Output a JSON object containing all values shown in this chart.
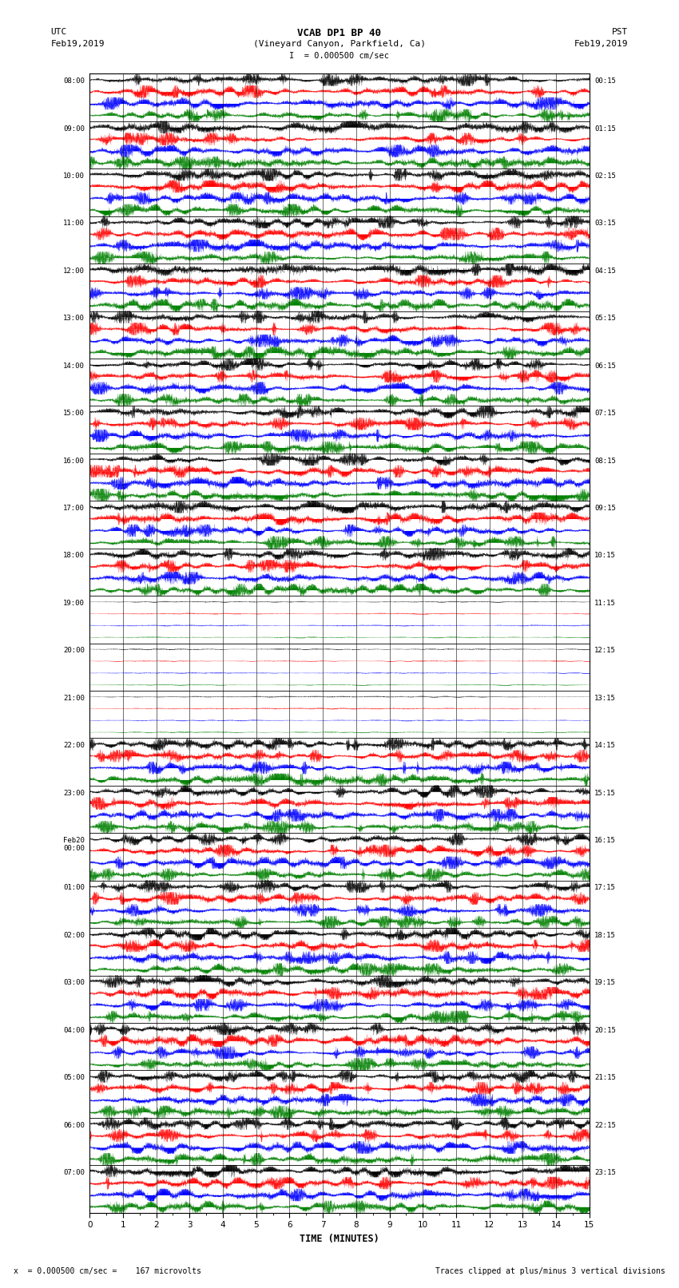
{
  "title_line1": "VCAB DP1 BP 40",
  "title_line2": "(Vineyard Canyon, Parkfield, Ca)",
  "scale_bar": "I  = 0.000500 cm/sec",
  "utc_label": "UTC",
  "utc_date": "Feb19,2019",
  "pst_label": "PST",
  "pst_date": "Feb19,2019",
  "xlabel": "TIME (MINUTES)",
  "bottom_left": "x  = 0.000500 cm/sec =    167 microvolts",
  "bottom_right": "Traces clipped at plus/minus 3 vertical divisions",
  "left_times": [
    "08:00",
    "09:00",
    "10:00",
    "11:00",
    "12:00",
    "13:00",
    "14:00",
    "15:00",
    "16:00",
    "17:00",
    "18:00",
    "19:00",
    "20:00",
    "21:00",
    "22:00",
    "23:00",
    "Feb20\n00:00",
    "01:00",
    "02:00",
    "03:00",
    "04:00",
    "05:00",
    "06:00",
    "07:00"
  ],
  "right_times": [
    "00:15",
    "01:15",
    "02:15",
    "03:15",
    "04:15",
    "05:15",
    "06:15",
    "07:15",
    "08:15",
    "09:15",
    "10:15",
    "11:15",
    "12:15",
    "13:15",
    "14:15",
    "15:15",
    "16:15",
    "17:15",
    "18:15",
    "19:15",
    "20:15",
    "21:15",
    "22:15",
    "23:15"
  ],
  "n_rows": 24,
  "n_minutes": 15,
  "traces_per_row": 4,
  "colors": [
    "black",
    "red",
    "blue",
    "green"
  ],
  "bg_color": "white",
  "active_rows": [
    0,
    1,
    2,
    3,
    4,
    5,
    6,
    7,
    8,
    9,
    10,
    14,
    15,
    16,
    17,
    18,
    19,
    20,
    21,
    22,
    23
  ],
  "quiet_rows": [
    11,
    12,
    13
  ],
  "amplitude_active": 0.48,
  "amplitude_quiet": 0.04,
  "sample_rate": 500
}
